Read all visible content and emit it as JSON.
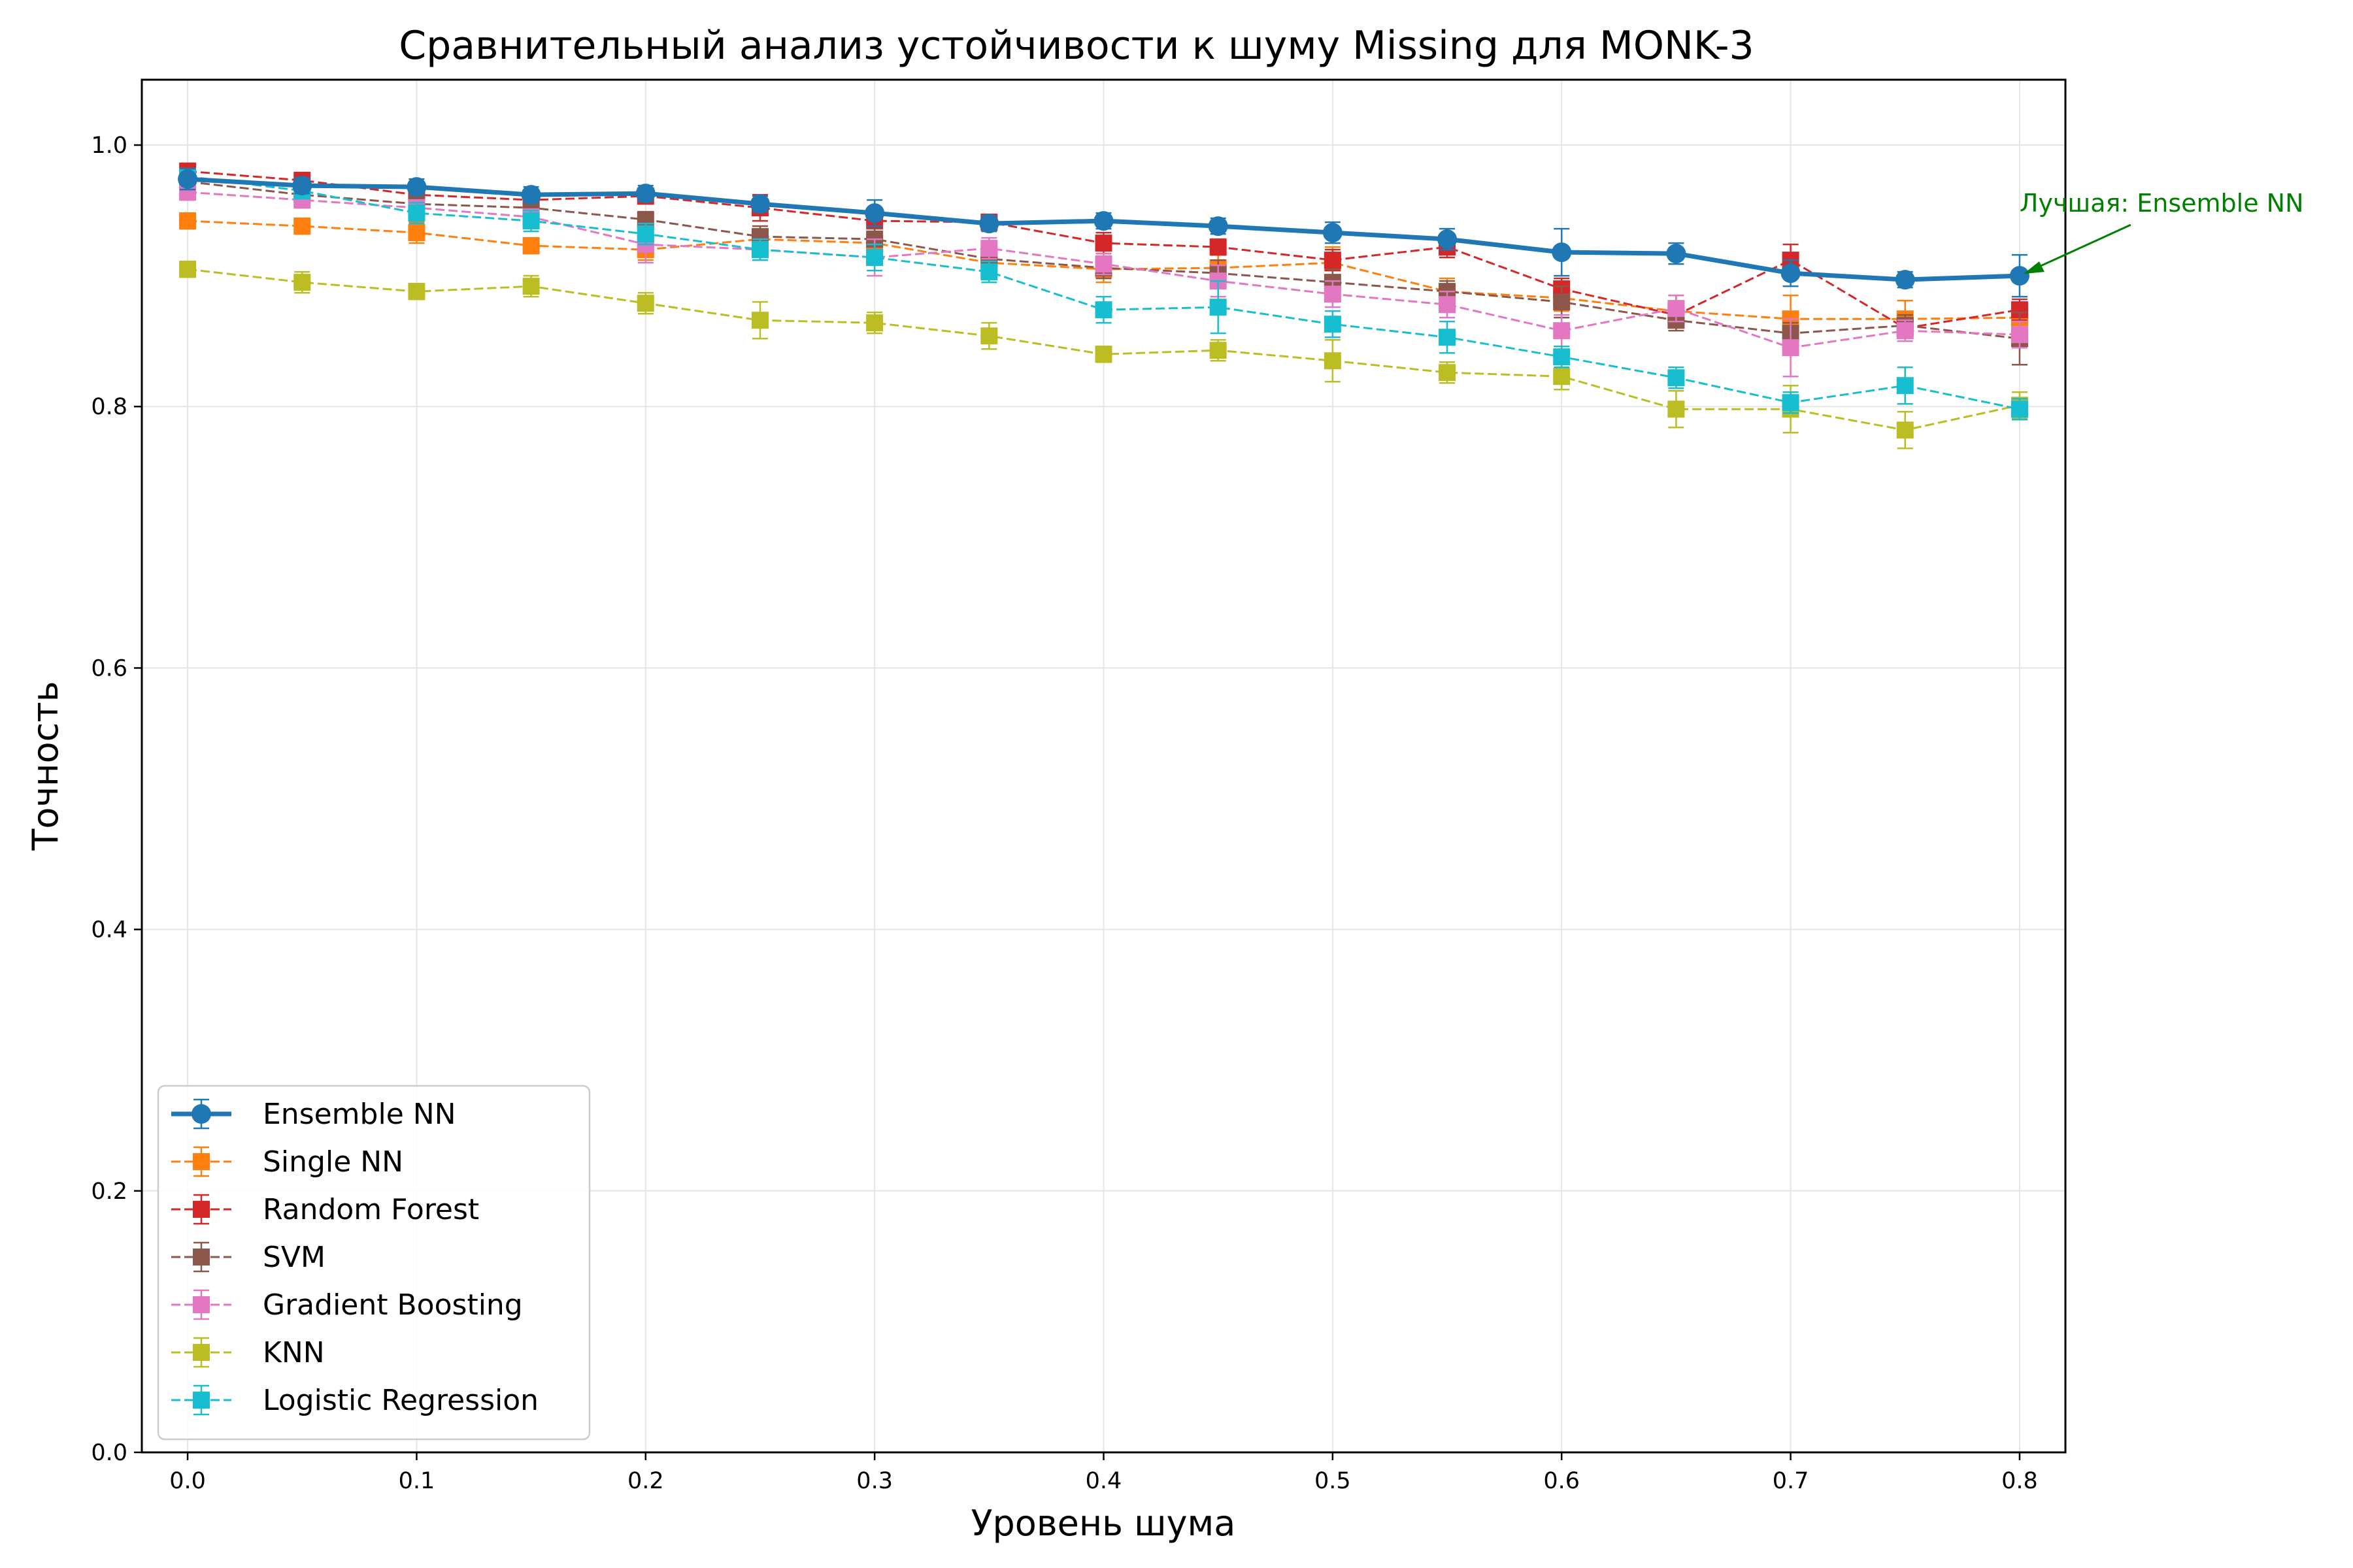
{
  "chart_data": {
    "type": "line",
    "title": "Сравнительный анализ устойчивости к шуму Missing для MONK-3",
    "xlabel": "Уровень шума",
    "ylabel": "Точность",
    "xlim": [
      -0.02,
      0.82
    ],
    "ylim": [
      0.0,
      1.05
    ],
    "x": [
      0.0,
      0.05,
      0.1,
      0.15,
      0.2,
      0.25,
      0.3,
      0.35,
      0.4,
      0.45,
      0.5,
      0.55,
      0.6,
      0.65,
      0.7,
      0.75,
      0.8
    ],
    "xticks": [
      0.0,
      0.1,
      0.2,
      0.3,
      0.4,
      0.5,
      0.6,
      0.7,
      0.8
    ],
    "xtick_labels": [
      "0.0",
      "0.1",
      "0.2",
      "0.3",
      "0.4",
      "0.5",
      "0.6",
      "0.7",
      "0.8"
    ],
    "yticks": [
      0.0,
      0.2,
      0.4,
      0.6,
      0.8,
      1.0
    ],
    "ytick_labels": [
      "0.0",
      "0.2",
      "0.4",
      "0.6",
      "0.8",
      "1.0"
    ],
    "grid": true,
    "legend_position": "lower-left",
    "series": [
      {
        "name": "Ensemble NN",
        "color": "#1f77b4",
        "style": "solid",
        "marker": "circle",
        "highlight": true,
        "values": [
          0.974,
          0.969,
          0.968,
          0.962,
          0.963,
          0.955,
          0.948,
          0.94,
          0.942,
          0.938,
          0.933,
          0.928,
          0.918,
          0.917,
          0.902,
          0.897,
          0.9
        ],
        "errors": [
          0.008,
          0.006,
          0.006,
          0.006,
          0.006,
          0.006,
          0.01,
          0.006,
          0.006,
          0.006,
          0.008,
          0.008,
          0.018,
          0.008,
          0.01,
          0.006,
          0.016
        ]
      },
      {
        "name": "Single NN",
        "color": "#ff7f0e",
        "style": "dashed",
        "marker": "square",
        "values": [
          0.942,
          0.938,
          0.933,
          0.923,
          0.92,
          0.928,
          0.925,
          0.91,
          0.905,
          0.906,
          0.91,
          0.888,
          0.883,
          0.873,
          0.867,
          0.867,
          0.868
        ],
        "errors": [
          0.006,
          0.006,
          0.008,
          0.006,
          0.008,
          0.01,
          0.008,
          0.008,
          0.01,
          0.01,
          0.012,
          0.01,
          0.01,
          0.012,
          0.018,
          0.014,
          0.01
        ]
      },
      {
        "name": "Random Forest",
        "color": "#d62728",
        "style": "dashed",
        "marker": "square",
        "values": [
          0.98,
          0.973,
          0.962,
          0.958,
          0.961,
          0.952,
          0.942,
          0.941,
          0.925,
          0.922,
          0.912,
          0.922,
          0.89,
          0.87,
          0.912,
          0.86,
          0.874
        ],
        "errors": [
          0.006,
          0.006,
          0.006,
          0.006,
          0.006,
          0.01,
          0.008,
          0.006,
          0.008,
          0.006,
          0.008,
          0.008,
          0.008,
          0.006,
          0.012,
          0.006,
          0.008
        ]
      },
      {
        "name": "SVM",
        "color": "#8c564b",
        "style": "dashed",
        "marker": "square",
        "values": [
          0.972,
          0.962,
          0.955,
          0.952,
          0.943,
          0.93,
          0.928,
          0.913,
          0.906,
          0.902,
          0.895,
          0.888,
          0.88,
          0.866,
          0.856,
          0.862,
          0.852
        ],
        "errors": [
          0.006,
          0.006,
          0.006,
          0.006,
          0.006,
          0.008,
          0.008,
          0.008,
          0.008,
          0.01,
          0.01,
          0.008,
          0.012,
          0.008,
          0.008,
          0.008,
          0.02
        ]
      },
      {
        "name": "Gradient Boosting",
        "color": "#e377c2",
        "style": "dashed",
        "marker": "square",
        "values": [
          0.964,
          0.958,
          0.952,
          0.945,
          0.924,
          0.92,
          0.914,
          0.921,
          0.909,
          0.896,
          0.886,
          0.878,
          0.858,
          0.875,
          0.845,
          0.858,
          0.855
        ],
        "errors": [
          0.006,
          0.006,
          0.006,
          0.006,
          0.014,
          0.008,
          0.014,
          0.008,
          0.008,
          0.012,
          0.01,
          0.01,
          0.012,
          0.01,
          0.022,
          0.008,
          0.01
        ]
      },
      {
        "name": "KNN",
        "color": "#bcbd22",
        "style": "dashed",
        "marker": "square",
        "values": [
          0.905,
          0.895,
          0.888,
          0.892,
          0.879,
          0.866,
          0.864,
          0.854,
          0.84,
          0.843,
          0.835,
          0.826,
          0.823,
          0.798,
          0.798,
          0.782,
          0.801
        ],
        "errors": [
          0.006,
          0.008,
          0.006,
          0.008,
          0.008,
          0.014,
          0.008,
          0.01,
          0.006,
          0.008,
          0.016,
          0.008,
          0.01,
          0.014,
          0.018,
          0.014,
          0.01
        ]
      },
      {
        "name": "Logistic Regression",
        "color": "#17becf",
        "style": "dashed",
        "marker": "square",
        "values": [
          0.976,
          0.965,
          0.948,
          0.942,
          0.932,
          0.92,
          0.914,
          0.903,
          0.874,
          0.876,
          0.863,
          0.853,
          0.838,
          0.822,
          0.803,
          0.816,
          0.798
        ],
        "errors": [
          0.006,
          0.006,
          0.008,
          0.008,
          0.008,
          0.008,
          0.01,
          0.008,
          0.01,
          0.02,
          0.01,
          0.012,
          0.008,
          0.008,
          0.008,
          0.014,
          0.008
        ]
      }
    ],
    "annotation": {
      "text": "Лучшая: Ensemble NN",
      "color": "#008000",
      "target_series": "Ensemble NN",
      "target_x": 0.8,
      "target_y": 0.9
    }
  }
}
